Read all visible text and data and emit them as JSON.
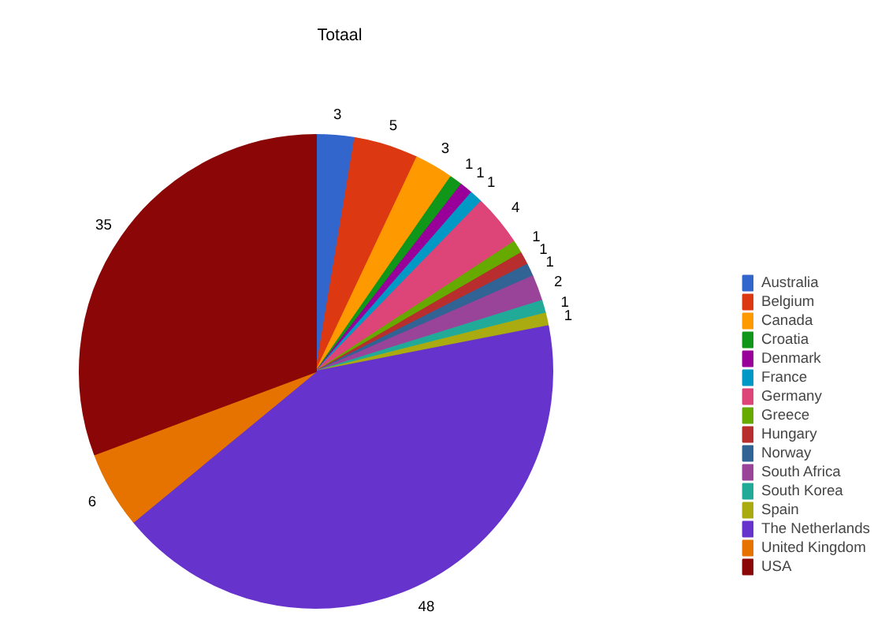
{
  "chart_data": {
    "type": "pie",
    "title": "Totaal",
    "categories": [
      "Australia",
      "Belgium",
      "Canada",
      "Croatia",
      "Denmark",
      "France",
      "Germany",
      "Greece",
      "Hungary",
      "Norway",
      "South Africa",
      "South Korea",
      "Spain",
      "The Netherlands",
      "United Kingdom",
      "USA"
    ],
    "values": [
      3,
      5,
      3,
      1,
      1,
      1,
      4,
      1,
      1,
      1,
      2,
      1,
      1,
      48,
      6,
      35
    ],
    "colors": [
      "#3366cc",
      "#dc3912",
      "#ff9900",
      "#109618",
      "#990099",
      "#0099c6",
      "#dd4477",
      "#66aa00",
      "#b82e2e",
      "#316395",
      "#994499",
      "#22aa99",
      "#aaaa11",
      "#6633cc",
      "#e67300",
      "#8b0707"
    ],
    "data_labels": true,
    "legend": "right"
  }
}
